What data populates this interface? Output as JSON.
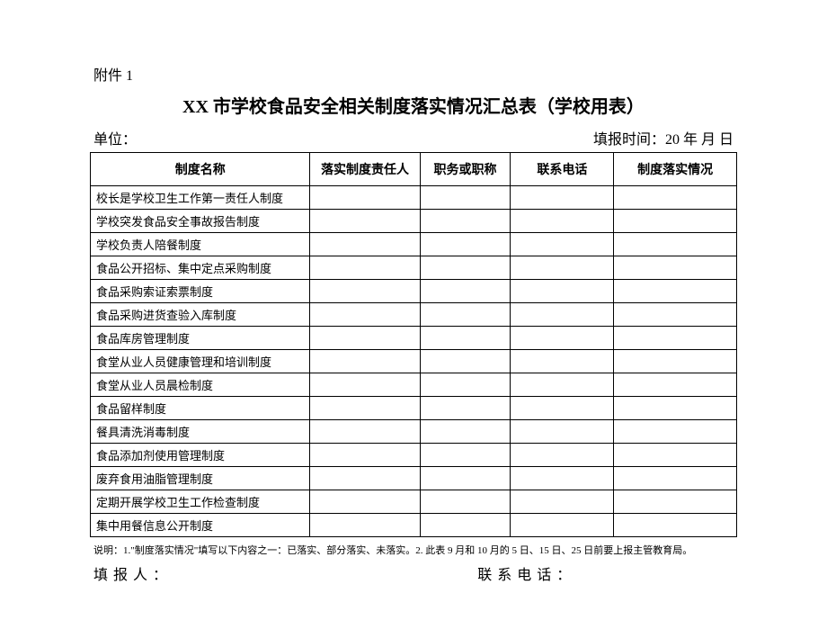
{
  "attachment_label": "附件 1",
  "title": "XX 市学校食品安全相关制度落实情况汇总表（学校用表）",
  "meta": {
    "unit_label": "单位：",
    "report_time_label": "填报时间：20 年 月 日"
  },
  "columns": {
    "name": "制度名称",
    "person": "落实制度责任人",
    "job_title": "职务或职称",
    "phone": "联系电话",
    "status": "制度落实情况"
  },
  "rows": [
    {
      "name": "校长是学校卫生工作第一责任人制度",
      "person": "",
      "job_title": "",
      "phone": "",
      "status": ""
    },
    {
      "name": "学校突发食品安全事故报告制度",
      "person": "",
      "job_title": "",
      "phone": "",
      "status": ""
    },
    {
      "name": "学校负责人陪餐制度",
      "person": "",
      "job_title": "",
      "phone": "",
      "status": ""
    },
    {
      "name": "食品公开招标、集中定点采购制度",
      "person": "",
      "job_title": "",
      "phone": "",
      "status": ""
    },
    {
      "name": "食品采购索证索票制度",
      "person": "",
      "job_title": "",
      "phone": "",
      "status": ""
    },
    {
      "name": "食品采购进货查验入库制度",
      "person": "",
      "job_title": "",
      "phone": "",
      "status": ""
    },
    {
      "name": "食品库房管理制度",
      "person": "",
      "job_title": "",
      "phone": "",
      "status": ""
    },
    {
      "name": "食堂从业人员健康管理和培训制度",
      "person": "",
      "job_title": "",
      "phone": "",
      "status": ""
    },
    {
      "name": "食堂从业人员晨检制度",
      "person": "",
      "job_title": "",
      "phone": "",
      "status": ""
    },
    {
      "name": "食品留样制度",
      "person": "",
      "job_title": "",
      "phone": "",
      "status": ""
    },
    {
      "name": "餐具清洗消毒制度",
      "person": "",
      "job_title": "",
      "phone": "",
      "status": ""
    },
    {
      "name": "食品添加剂使用管理制度",
      "person": "",
      "job_title": "",
      "phone": "",
      "status": ""
    },
    {
      "name": "废弃食用油脂管理制度",
      "person": "",
      "job_title": "",
      "phone": "",
      "status": ""
    },
    {
      "name": "定期开展学校卫生工作检查制度",
      "person": "",
      "job_title": "",
      "phone": "",
      "status": ""
    },
    {
      "name": "集中用餐信息公开制度",
      "person": "",
      "job_title": "",
      "phone": "",
      "status": ""
    }
  ],
  "note": "说明：1.\"制度落实情况\"填写以下内容之一：已落实、部分落实、未落实。2. 此表 9 月和 10 月的 5 日、15 日、25 日前要上报主管教育局。",
  "footer": {
    "reporter_label": "填报人：",
    "contact_label": "联系电话："
  }
}
